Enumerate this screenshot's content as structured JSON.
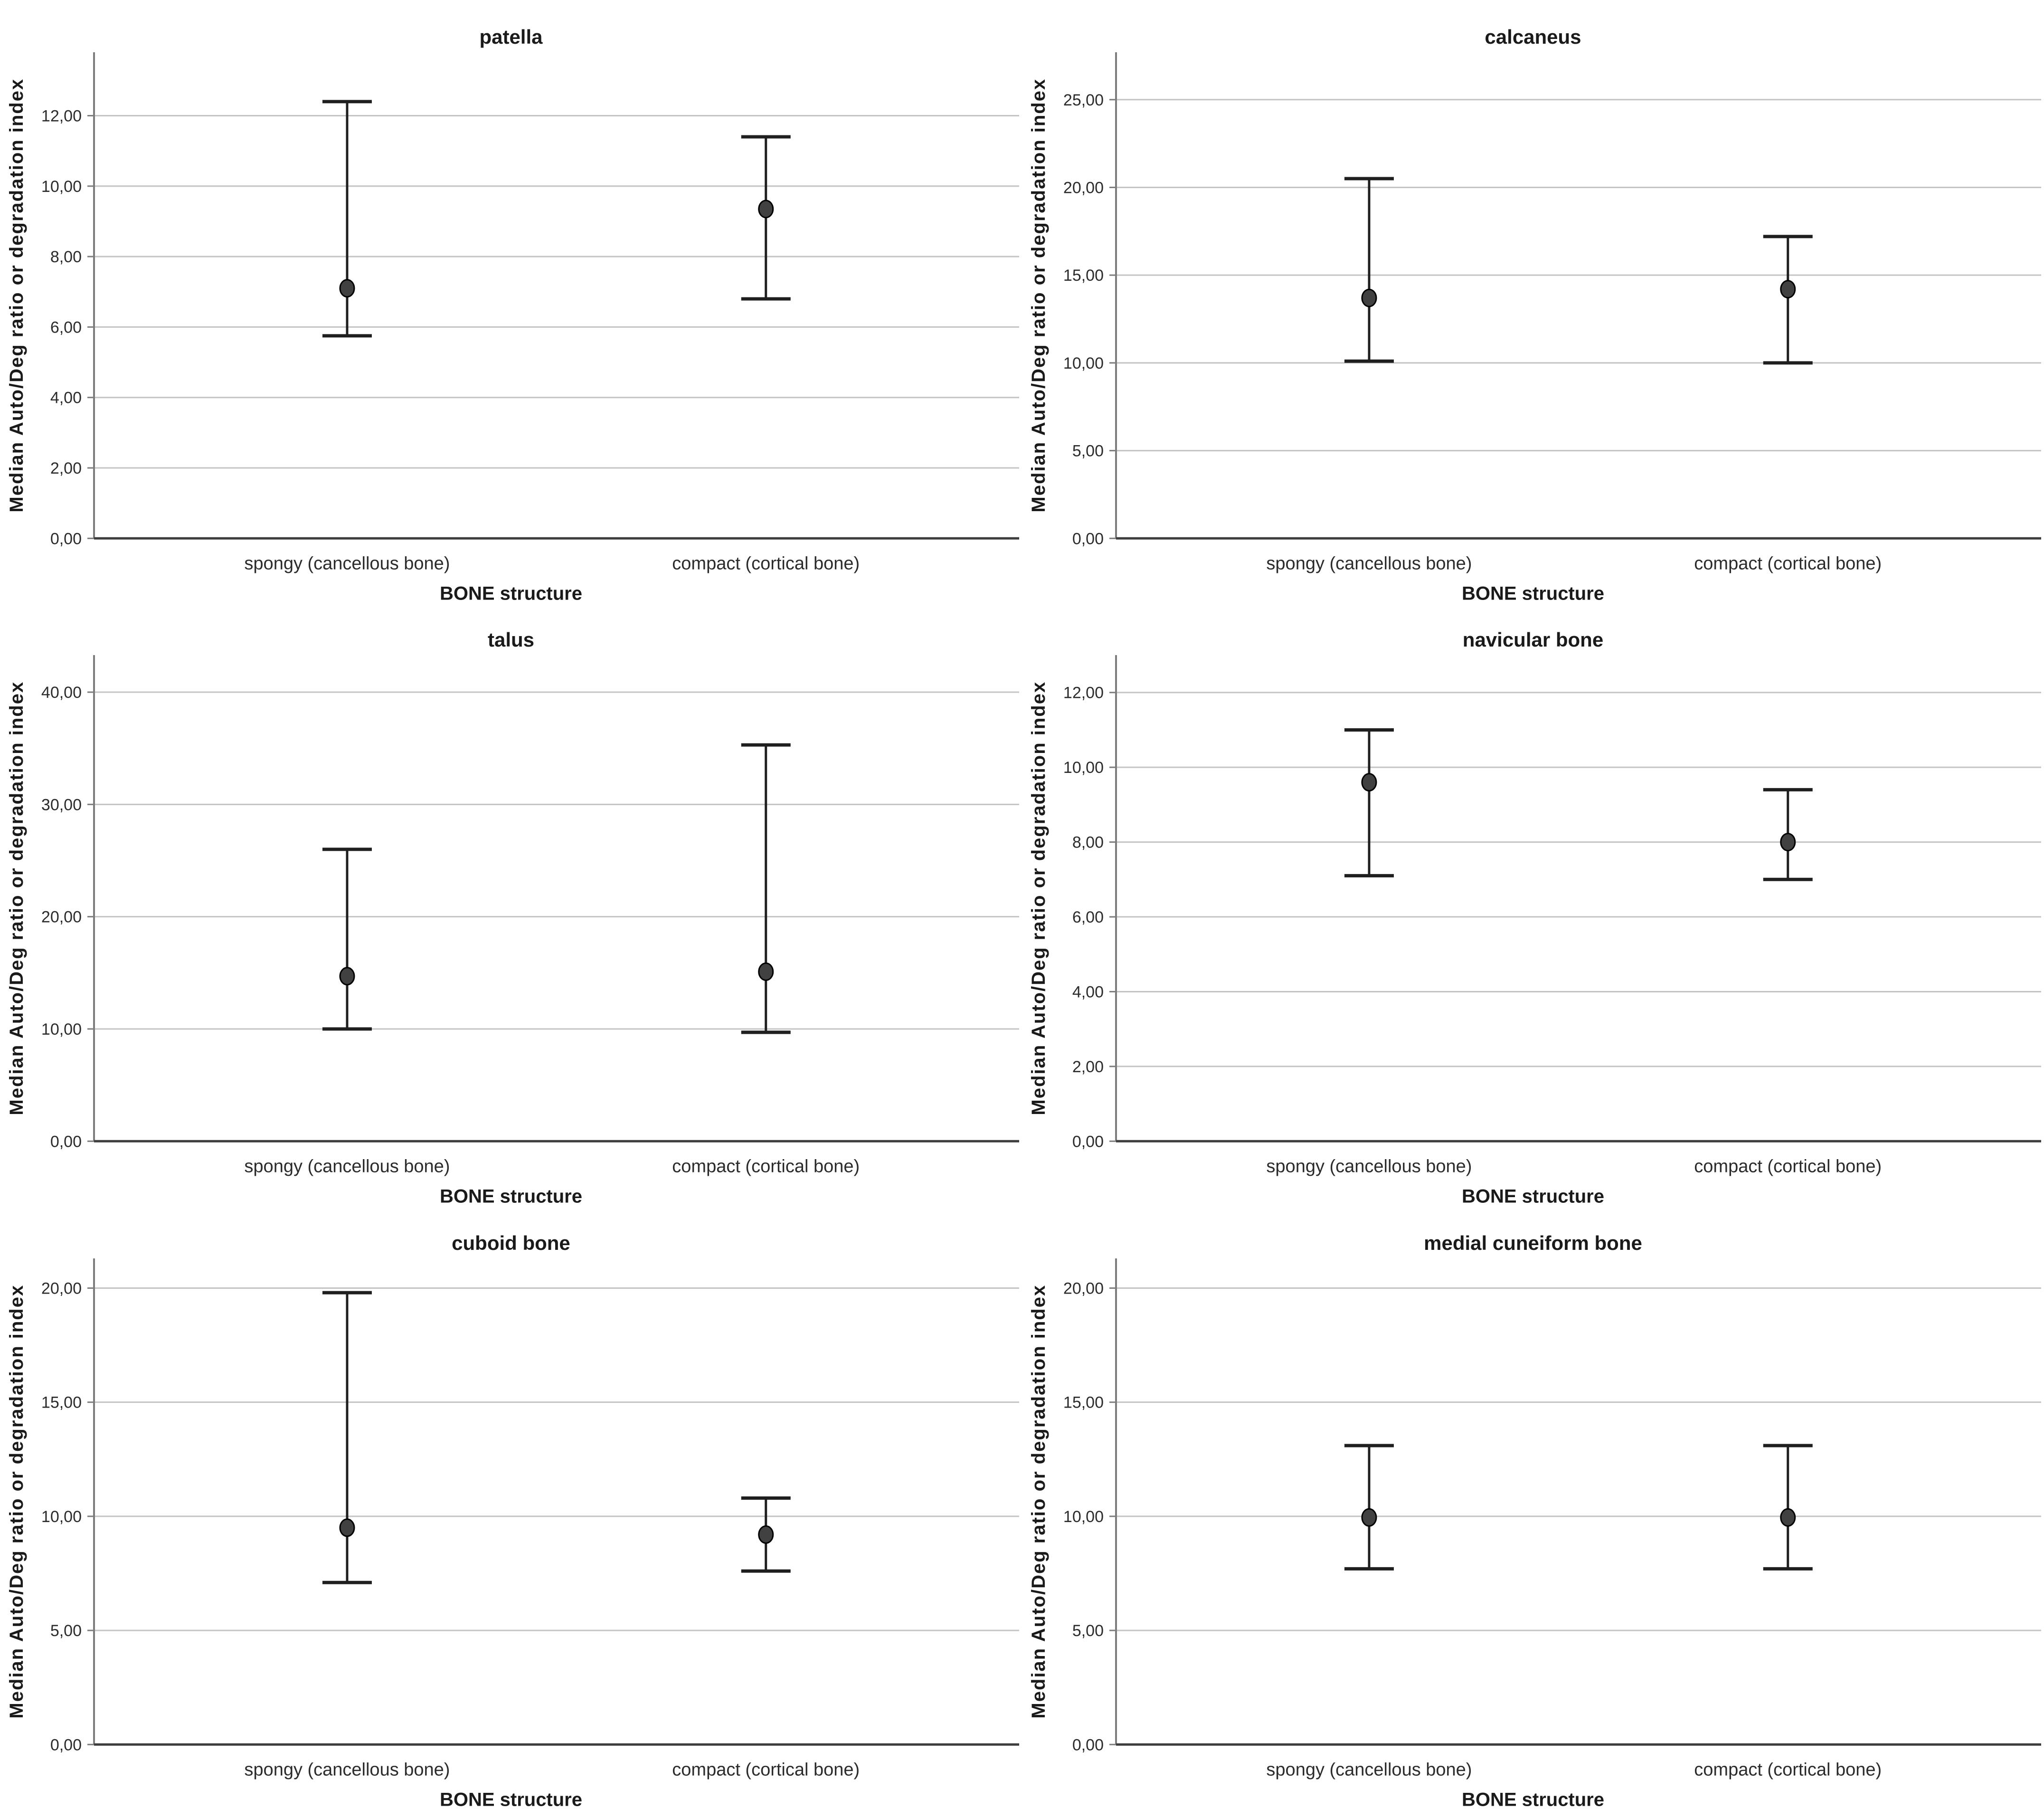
{
  "page": {
    "background_color": "#ffffff",
    "layout": "2x3 grid of error bar charts"
  },
  "shared_labels": {
    "ylabel": "Median Auto/Deg ratio or degradation index",
    "xlabel": "BONE structure",
    "categories": [
      "spongy (cancellous bone)",
      "compact (cortical bone)"
    ]
  },
  "colors": {
    "gridline": "#c4c4c4",
    "y_axis": "#7d7d7d",
    "x_axis": "#3d3d3d",
    "error_bar": "#1f1f1f",
    "marker_fill": "#414141",
    "marker_stroke": "#000000",
    "text": "#1a1a1a"
  },
  "chart_data": [
    {
      "type": "errorbar",
      "title": "patella",
      "xlabel": "BONE structure",
      "ylabel": "Median Auto/Deg ratio or degradation index",
      "categories": [
        "spongy (cancellous bone)",
        "compact (cortical bone)"
      ],
      "yticks": [
        0,
        2,
        4,
        6,
        8,
        10,
        12
      ],
      "ytick_labels": [
        "0,00",
        "2,00",
        "4,00",
        "6,00",
        "8,00",
        "10,00",
        "12,00"
      ],
      "ylim": [
        0,
        13.8
      ],
      "grid": true,
      "points": [
        {
          "category": "spongy (cancellous bone)",
          "median": 7.1,
          "lower": 5.75,
          "upper": 12.4
        },
        {
          "category": "compact (cortical bone)",
          "median": 9.35,
          "lower": 6.8,
          "upper": 11.4
        }
      ]
    },
    {
      "type": "errorbar",
      "title": "calcaneus",
      "xlabel": "BONE structure",
      "ylabel": "Median Auto/Deg ratio or degradation index",
      "categories": [
        "spongy (cancellous bone)",
        "compact (cortical bone)"
      ],
      "yticks": [
        0,
        5,
        10,
        15,
        20,
        25
      ],
      "ytick_labels": [
        "0,00",
        "5,00",
        "10,00",
        "15,00",
        "20,00",
        "25,00"
      ],
      "ylim": [
        0,
        27.7
      ],
      "grid": true,
      "points": [
        {
          "category": "spongy (cancellous bone)",
          "median": 13.7,
          "lower": 10.1,
          "upper": 20.5
        },
        {
          "category": "compact (cortical bone)",
          "median": 14.2,
          "lower": 10.0,
          "upper": 17.2
        }
      ]
    },
    {
      "type": "errorbar",
      "title": "talus",
      "xlabel": "BONE structure",
      "ylabel": "Median Auto/Deg ratio or degradation index",
      "categories": [
        "spongy (cancellous bone)",
        "compact (cortical bone)"
      ],
      "yticks": [
        0,
        10,
        20,
        30,
        40
      ],
      "ytick_labels": [
        "0,00",
        "10,00",
        "20,00",
        "30,00",
        "40,00"
      ],
      "ylim": [
        0,
        43.3
      ],
      "grid": true,
      "points": [
        {
          "category": "spongy (cancellous bone)",
          "median": 14.7,
          "lower": 10.0,
          "upper": 26.0
        },
        {
          "category": "compact (cortical bone)",
          "median": 15.1,
          "lower": 9.7,
          "upper": 35.3
        }
      ]
    },
    {
      "type": "errorbar",
      "title": "navicular bone",
      "xlabel": "BONE structure",
      "ylabel": "Median Auto/Deg ratio or degradation index",
      "categories": [
        "spongy (cancellous bone)",
        "compact (cortical bone)"
      ],
      "yticks": [
        0,
        2,
        4,
        6,
        8,
        10,
        12
      ],
      "ytick_labels": [
        "0,00",
        "2,00",
        "4,00",
        "6,00",
        "8,00",
        "10,00",
        "12,00"
      ],
      "ylim": [
        0,
        13.0
      ],
      "grid": true,
      "points": [
        {
          "category": "spongy (cancellous bone)",
          "median": 9.6,
          "lower": 7.1,
          "upper": 11.0
        },
        {
          "category": "compact (cortical bone)",
          "median": 8.0,
          "lower": 7.0,
          "upper": 9.4
        }
      ]
    },
    {
      "type": "errorbar",
      "title": "cuboid bone",
      "xlabel": "BONE structure",
      "ylabel": "Median Auto/Deg ratio or degradation index",
      "categories": [
        "spongy (cancellous bone)",
        "compact (cortical bone)"
      ],
      "yticks": [
        0,
        5,
        10,
        15,
        20
      ],
      "ytick_labels": [
        "0,00",
        "5,00",
        "10,00",
        "15,00",
        "20,00"
      ],
      "ylim": [
        0,
        21.3
      ],
      "grid": true,
      "points": [
        {
          "category": "spongy (cancellous bone)",
          "median": 9.5,
          "lower": 7.1,
          "upper": 19.8
        },
        {
          "category": "compact (cortical bone)",
          "median": 9.2,
          "lower": 7.6,
          "upper": 10.8
        }
      ]
    },
    {
      "type": "errorbar",
      "title": "medial cuneiform bone",
      "xlabel": "BONE structure",
      "ylabel": "Median Auto/Deg ratio or degradation index",
      "categories": [
        "spongy (cancellous bone)",
        "compact (cortical bone)"
      ],
      "yticks": [
        0,
        5,
        10,
        15,
        20
      ],
      "ytick_labels": [
        "0,00",
        "5,00",
        "10,00",
        "15,00",
        "20,00"
      ],
      "ylim": [
        0,
        21.3
      ],
      "grid": true,
      "points": [
        {
          "category": "spongy (cancellous bone)",
          "median": 9.95,
          "lower": 7.7,
          "upper": 13.1
        },
        {
          "category": "compact (cortical bone)",
          "median": 9.95,
          "lower": 7.7,
          "upper": 13.1
        }
      ]
    }
  ]
}
